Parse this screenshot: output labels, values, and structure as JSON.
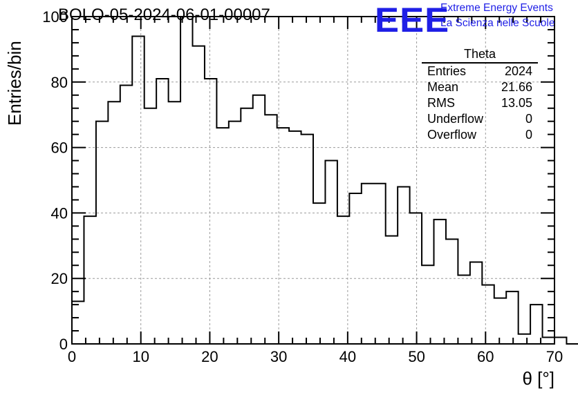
{
  "title": "BOLO-05-2024-06-01-00007",
  "logo": {
    "mark": "EEE",
    "line1": "Extreme Energy Events",
    "line2": "La Scienza nelle Scuole",
    "color": "#1f1fe6"
  },
  "stats": {
    "title": "Theta",
    "rows": [
      {
        "label": "Entries",
        "value": "2024"
      },
      {
        "label": "Mean",
        "value": "21.66"
      },
      {
        "label": "RMS",
        "value": "13.05"
      },
      {
        "label": "Underflow",
        "value": "0"
      },
      {
        "label": "Overflow",
        "value": "0"
      }
    ]
  },
  "chart_data": {
    "type": "histogram",
    "title": "BOLO-05-2024-06-01-00007",
    "xlabel": "θ [°]",
    "ylabel": "Entries/bin",
    "xlim": [
      0,
      70
    ],
    "ylim": [
      0,
      100
    ],
    "bin_width": 1.75,
    "grid": true,
    "x_ticks": [
      0,
      10,
      20,
      30,
      40,
      50,
      60,
      70
    ],
    "y_ticks": [
      0,
      20,
      40,
      60,
      80,
      100
    ],
    "values": [
      13,
      39,
      68,
      74,
      79,
      94,
      72,
      81,
      74,
      100,
      91,
      81,
      66,
      68,
      72,
      76,
      70,
      66,
      65,
      64,
      43,
      56,
      39,
      46,
      49,
      49,
      33,
      48,
      40,
      24,
      38,
      32,
      21,
      25,
      18,
      14,
      16,
      3,
      12,
      2,
      2,
      0
    ]
  }
}
